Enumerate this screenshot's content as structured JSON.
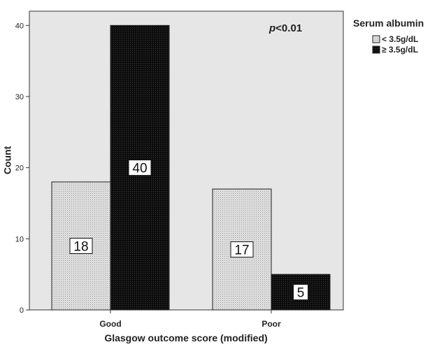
{
  "chart_data": {
    "type": "bar",
    "categories": [
      "Good",
      "Poor"
    ],
    "series": [
      {
        "name": "< 3.5g/dL",
        "values": [
          18,
          17
        ],
        "color": "#dcdcdc",
        "pattern": "dotted-light"
      },
      {
        "name": "≥ 3.5g/dL",
        "values": [
          40,
          5
        ],
        "color": "#111111",
        "pattern": "dotted-dark"
      }
    ],
    "data_labels": [
      [
        "18",
        "17"
      ],
      [
        "40",
        "5"
      ]
    ],
    "title": "",
    "xlabel": "Glasgow outcome score (modified)",
    "ylabel": "Count",
    "ylim": [
      0,
      42
    ],
    "yticks": [
      0,
      10,
      20,
      30,
      40
    ],
    "grid": false,
    "plot_background": "#e6e6e6",
    "legend": {
      "title": "Serum albumin",
      "placement": "right-outside-top"
    },
    "annotation": {
      "prefix": "p",
      "text": "<0.01"
    }
  }
}
